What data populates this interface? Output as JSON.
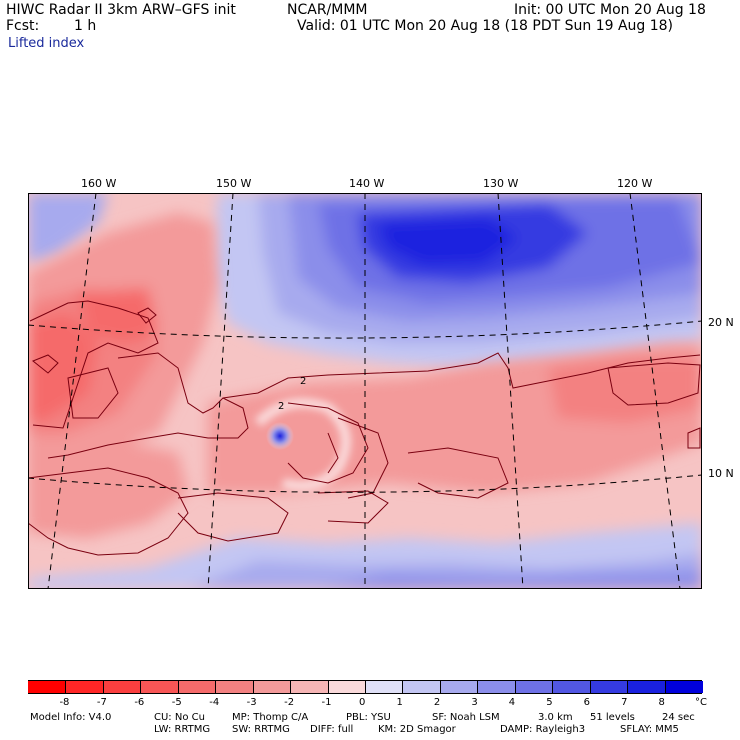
{
  "header": {
    "model_title": "HIWC Radar II 3km ARW–GFS init",
    "org": "NCAR/MMM",
    "init": "Init: 00 UTC Mon 20 Aug 18",
    "fcst_label": "Fcst:",
    "fcst_value": "1 h",
    "valid": "Valid: 01 UTC Mon 20 Aug 18 (18 PDT Sun 19 Aug 18)",
    "field": "Lifted index"
  },
  "map": {
    "lon_labels": [
      "160 W",
      "150 W",
      "140 W",
      "130 W",
      "120 W"
    ],
    "lat_labels": [
      "20 N",
      "10 N"
    ],
    "contour_labels": [
      "2",
      "2",
      "2"
    ]
  },
  "colorbar": {
    "levels": [
      "-8",
      "-7",
      "-6",
      "-5",
      "-4",
      "-3",
      "-2",
      "-1",
      "0",
      "1",
      "2",
      "3",
      "4",
      "5",
      "6",
      "7",
      "8"
    ],
    "unit": "°C",
    "colors": [
      "#ff0000",
      "#ff2626",
      "#fb3f3f",
      "#f85656",
      "#f56b6b",
      "#f38181",
      "#f39a9a",
      "#f6b5b5",
      "#fadadb",
      "#dfe0f7",
      "#c3c6f3",
      "#a7aaee",
      "#8b8eea",
      "#6e71e6",
      "#5257e3",
      "#353be1",
      "#1a21df",
      "#0000dc"
    ]
  },
  "footer": {
    "line1": [
      "Model Info: V4.0",
      "CU: No Cu",
      "MP: Thomp C/A",
      "PBL: YSU",
      "SF: Noah LSM",
      "3.0 km",
      "51 levels",
      "24 sec"
    ],
    "line2": [
      "LW: RRTMG",
      "SW: RRTMG",
      "DIFF: full",
      "KM: 2D Smagor",
      "DAMP: Rayleigh3",
      "SFLAY: MM5"
    ]
  }
}
